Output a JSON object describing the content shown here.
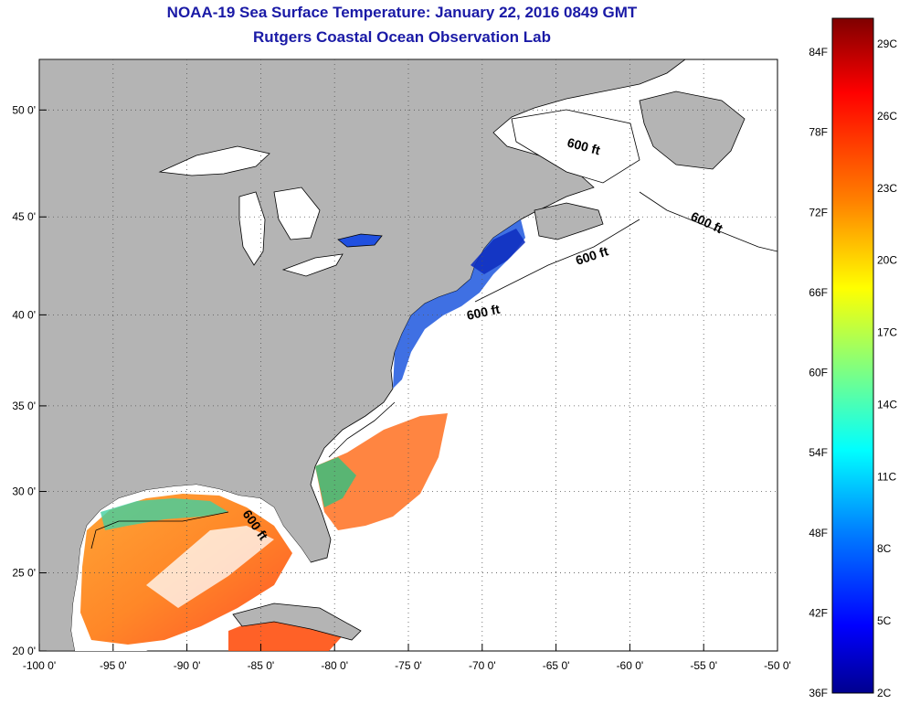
{
  "title": "NOAA-19 Sea Surface Temperature:  January 22, 2016 0849 GMT",
  "subtitle": "Rutgers Coastal Ocean Observation Lab",
  "map": {
    "lon_labels": [
      "-100 0'",
      "-95 0'",
      "-90 0'",
      "-85 0'",
      "-80 0'",
      "-75 0'",
      "-70 0'",
      "-65 0'",
      "-60 0'",
      "-55 0'",
      "-50 0'"
    ],
    "lat_labels": [
      "50 0'",
      "45 0'",
      "40 0'",
      "35 0'",
      "30 0'",
      "25 0'",
      "20 0'"
    ],
    "lon_values": [
      -100,
      -95,
      -90,
      -85,
      -80,
      -75,
      -70,
      -65,
      -60,
      -55,
      -50
    ],
    "lat_values": [
      50,
      45,
      40,
      35,
      30,
      25,
      20
    ],
    "isobath_label": "600 ft",
    "land_color": "#b4b4b4",
    "ocean_color": "#ffffff"
  },
  "colorbar": {
    "f_labels": [
      "84F",
      "78F",
      "72F",
      "66F",
      "60F",
      "54F",
      "48F",
      "42F",
      "36F"
    ],
    "c_labels": [
      "29C",
      "26C",
      "23C",
      "20C",
      "17C",
      "14C",
      "11C",
      "8C",
      "5C",
      "2C"
    ],
    "stops": [
      "#7f0000",
      "#ff0000",
      "#ff8000",
      "#ffff00",
      "#80ff80",
      "#00ffff",
      "#0080ff",
      "#0000ff",
      "#00008f"
    ]
  }
}
